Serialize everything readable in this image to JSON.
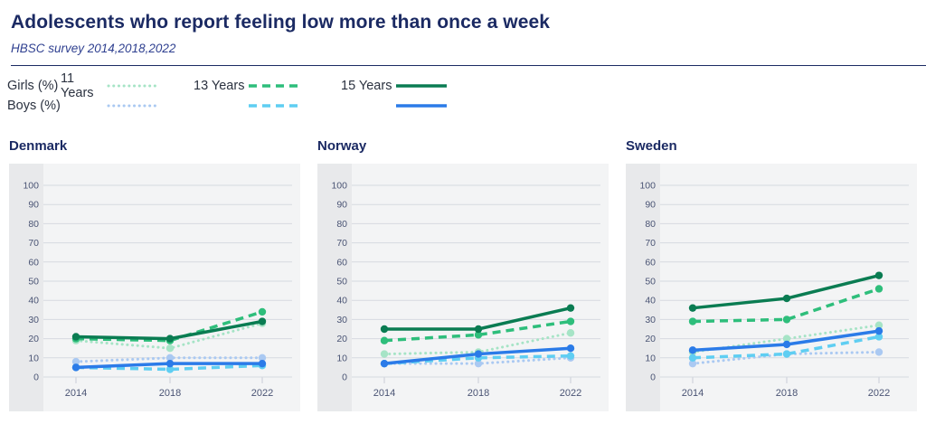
{
  "header": {
    "title": "Adolescents who report feeling low more than once a week",
    "subtitle": "HBSC survey 2014,2018,2022"
  },
  "legend": {
    "girls_label": "Girls (%)",
    "boys_label": "Boys (%)",
    "ages": [
      "11 Years",
      "13 Years",
      "15 Years"
    ]
  },
  "colors": {
    "title": "#1B2A63",
    "subtitle": "#2F4090",
    "axis_text": "#4A5474",
    "gridline": "#D6DAE0",
    "panel_bg": "#F3F4F5",
    "strip_bg": "#E8E9EB",
    "girls_11": "#A6E4C6",
    "girls_13": "#2EBE7B",
    "girls_15": "#0A7C52",
    "boys_11": "#AAC9F2",
    "boys_13": "#5FCEF2",
    "boys_15": "#2B7BE8"
  },
  "chart_data": [
    {
      "type": "line",
      "title": "Denmark",
      "x": [
        2014,
        2018,
        2022
      ],
      "ylim": [
        0,
        100
      ],
      "yticks": [
        0,
        10,
        20,
        30,
        40,
        50,
        60,
        70,
        80,
        90,
        100
      ],
      "grid": true,
      "legend_position": "top",
      "xlabel": "",
      "ylabel": "",
      "series": [
        {
          "name": "Girls 11 Years",
          "key": "girls_11",
          "style": "dotted",
          "values": [
            19,
            15,
            28
          ]
        },
        {
          "name": "Girls 13 Years",
          "key": "girls_13",
          "style": "dashed",
          "values": [
            20,
            19,
            34
          ]
        },
        {
          "name": "Girls 15 Years",
          "key": "girls_15",
          "style": "solid",
          "values": [
            21,
            20,
            29
          ]
        },
        {
          "name": "Boys 11 Years",
          "key": "boys_11",
          "style": "dotted",
          "values": [
            8,
            10,
            10
          ]
        },
        {
          "name": "Boys 13 Years",
          "key": "boys_13",
          "style": "dashed",
          "values": [
            5,
            4,
            6
          ]
        },
        {
          "name": "Boys 15 Years",
          "key": "boys_15",
          "style": "solid",
          "values": [
            5,
            7,
            7
          ]
        }
      ]
    },
    {
      "type": "line",
      "title": "Norway",
      "x": [
        2014,
        2018,
        2022
      ],
      "ylim": [
        0,
        100
      ],
      "yticks": [
        0,
        10,
        20,
        30,
        40,
        50,
        60,
        70,
        80,
        90,
        100
      ],
      "grid": true,
      "legend_position": "top",
      "xlabel": "",
      "ylabel": "",
      "series": [
        {
          "name": "Girls 11 Years",
          "key": "girls_11",
          "style": "dotted",
          "values": [
            12,
            13,
            23
          ]
        },
        {
          "name": "Girls 13 Years",
          "key": "girls_13",
          "style": "dashed",
          "values": [
            19,
            22,
            29
          ]
        },
        {
          "name": "Girls 15 Years",
          "key": "girls_15",
          "style": "solid",
          "values": [
            25,
            25,
            36
          ]
        },
        {
          "name": "Boys 11 Years",
          "key": "boys_11",
          "style": "dotted",
          "values": [
            7,
            7,
            10
          ]
        },
        {
          "name": "Boys 13 Years",
          "key": "boys_13",
          "style": "dashed",
          "values": [
            7,
            10,
            11
          ]
        },
        {
          "name": "Boys 15 Years",
          "key": "boys_15",
          "style": "solid",
          "values": [
            7,
            12,
            15
          ]
        }
      ]
    },
    {
      "type": "line",
      "title": "Sweden",
      "x": [
        2014,
        2018,
        2022
      ],
      "ylim": [
        0,
        100
      ],
      "yticks": [
        0,
        10,
        20,
        30,
        40,
        50,
        60,
        70,
        80,
        90,
        100
      ],
      "grid": true,
      "legend_position": "top",
      "xlabel": "",
      "ylabel": "",
      "series": [
        {
          "name": "Girls 11 Years",
          "key": "girls_11",
          "style": "dotted",
          "values": [
            13,
            20,
            27
          ]
        },
        {
          "name": "Girls 13 Years",
          "key": "girls_13",
          "style": "dashed",
          "values": [
            29,
            30,
            46
          ]
        },
        {
          "name": "Girls 15 Years",
          "key": "girls_15",
          "style": "solid",
          "values": [
            36,
            41,
            53
          ]
        },
        {
          "name": "Boys 11 Years",
          "key": "boys_11",
          "style": "dotted",
          "values": [
            7,
            12,
            13
          ]
        },
        {
          "name": "Boys 13 Years",
          "key": "boys_13",
          "style": "dashed",
          "values": [
            10,
            12,
            21
          ]
        },
        {
          "name": "Boys 15 Years",
          "key": "boys_15",
          "style": "solid",
          "values": [
            14,
            17,
            24
          ]
        }
      ]
    }
  ]
}
